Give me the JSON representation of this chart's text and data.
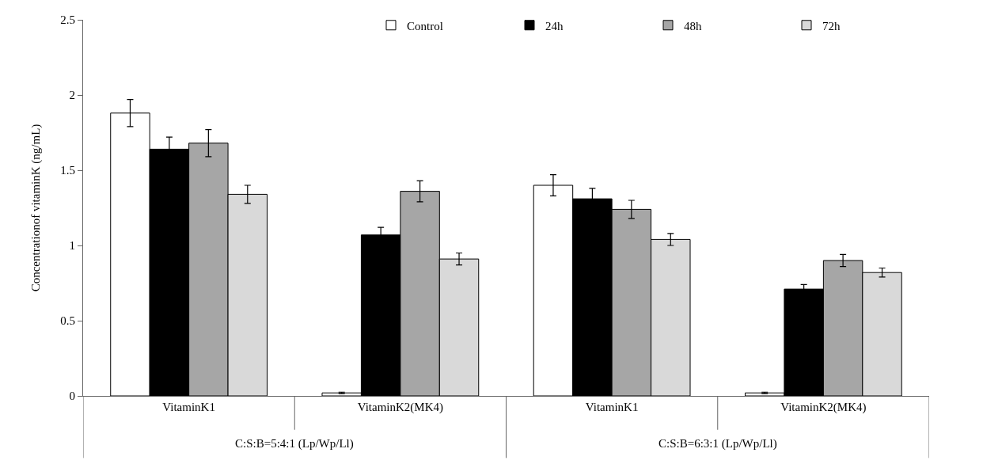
{
  "chart_data": {
    "type": "bar",
    "ylabel": "Concentrationof vitaminK (ng/mL)",
    "categories": [
      "VitaminK1",
      "VitaminK2(MK4)",
      "VitaminK1",
      "VitaminK2(MK4)"
    ],
    "series": [
      {
        "name": "Control",
        "color": "#ffffff",
        "values": [
          1.88,
          0.02,
          1.4,
          0.02
        ],
        "errors": [
          0.09,
          0.005,
          0.07,
          0.005
        ]
      },
      {
        "name": "24h",
        "color": "#000000",
        "values": [
          1.64,
          1.07,
          1.31,
          0.71
        ],
        "errors": [
          0.08,
          0.05,
          0.07,
          0.03
        ]
      },
      {
        "name": "48h",
        "color": "#a6a6a6",
        "values": [
          1.68,
          1.36,
          1.24,
          0.9
        ],
        "errors": [
          0.09,
          0.07,
          0.06,
          0.04
        ]
      },
      {
        "name": "72h",
        "color": "#d9d9d9",
        "values": [
          1.34,
          0.91,
          1.04,
          0.82
        ],
        "errors": [
          0.06,
          0.04,
          0.04,
          0.03
        ]
      }
    ],
    "annotations": [
      "C:S:B=5:4:1 (Lp/Wp/Ll)",
      "C:S:B=6:3:1 (Lp/Wp/Ll)"
    ],
    "ylim": [
      0,
      2.5
    ],
    "yticks": [
      0,
      0.5,
      1,
      1.5,
      2,
      2.5
    ],
    "grid": false,
    "legend": "top right"
  }
}
